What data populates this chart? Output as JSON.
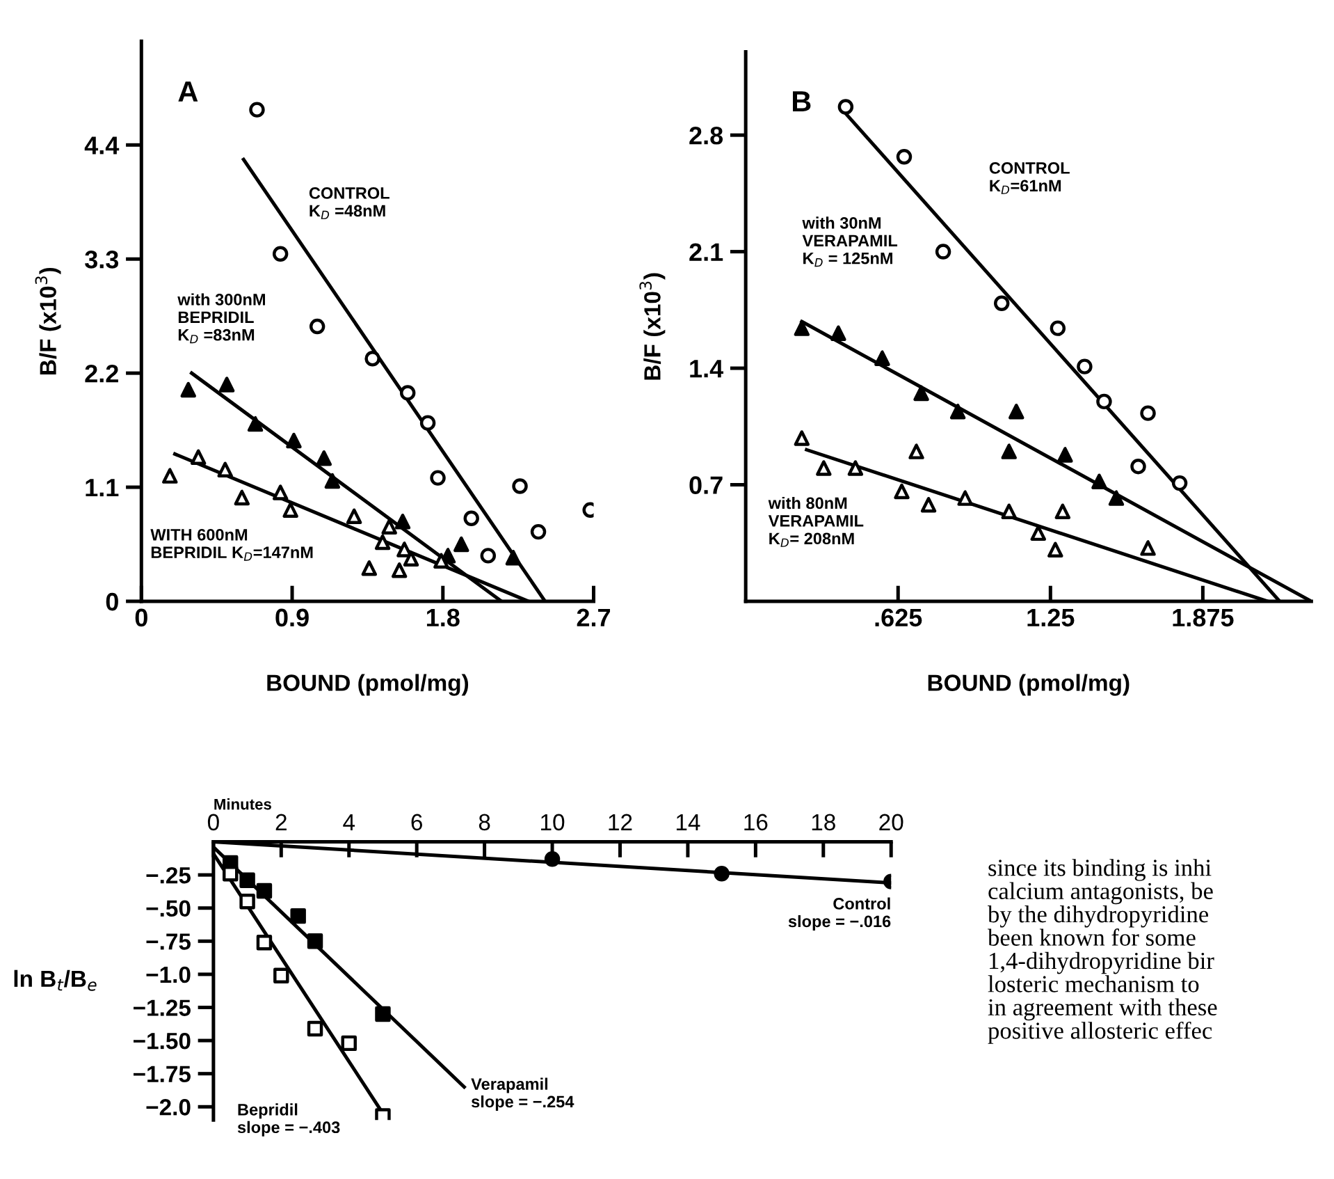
{
  "chart_data": [
    {
      "type": "scatter",
      "title": "A",
      "xlabel": "BOUND (pmol/mg)",
      "ylabel": "B/F (x10$^{3}$)",
      "xlim": [
        0,
        2.7
      ],
      "xticks": [
        0,
        0.9,
        1.8,
        2.7
      ],
      "ylim": [
        0,
        5.4
      ],
      "yticks": [
        0,
        1.1,
        2.2,
        3.3,
        4.4
      ],
      "grid": false,
      "legend": false,
      "series": [
        {
          "marker": "circle",
          "color": "#ffffff",
          "x": [
            0.69,
            0.83,
            1.05,
            1.38,
            1.59,
            1.71,
            1.77,
            1.97,
            2.07,
            2.26,
            2.37,
            2.68
          ],
          "values": [
            4.74,
            3.35,
            2.65,
            2.34,
            2.01,
            1.72,
            1.19,
            0.8,
            0.44,
            1.11,
            0.67,
            0.88
          ]
        },
        {
          "marker": "triangle",
          "color": "#000000",
          "x": [
            0.28,
            0.51,
            0.68,
            0.91,
            1.09,
            1.14,
            1.56,
            1.83,
            1.91,
            2.22
          ],
          "values": [
            2.04,
            2.09,
            1.71,
            1.55,
            1.38,
            1.16,
            0.77,
            0.44,
            0.55,
            0.42
          ]
        },
        {
          "marker": "triangle",
          "color": "#ffffff",
          "x": [
            0.17,
            0.34,
            0.5,
            0.6,
            0.83,
            0.89,
            1.27,
            1.48,
            1.44,
            1.36,
            1.57,
            1.61,
            1.54,
            1.79
          ],
          "values": [
            1.21,
            1.39,
            1.27,
            1.0,
            1.05,
            0.88,
            0.82,
            0.72,
            0.57,
            0.32,
            0.5,
            0.41,
            0.3,
            0.39
          ]
        },
        {
          "type": "line",
          "line_style": "solid",
          "color": "#000000",
          "x": [
            0.61,
            2.41
          ],
          "values": [
            4.26,
            0
          ]
        },
        {
          "type": "line",
          "line_style": "solid",
          "color": "#000000",
          "x": [
            0.3,
            2.15
          ],
          "values": [
            2.2,
            0
          ]
        },
        {
          "type": "line",
          "line_style": "solid",
          "color": "#000000",
          "x": [
            0.2,
            2.31
          ],
          "values": [
            1.42,
            0
          ]
        }
      ],
      "annotations": [
        "CONTROL\nK$_{D}$ =48nM",
        "with 300nM\nBEPRIDIL\nK$_{D}$ =83nM",
        "WITH 600nM\nBEPRIDIL K$_{D}$=147nM"
      ]
    },
    {
      "type": "scatter",
      "title": "B",
      "xlabel": "BOUND (pmol/mg)",
      "ylabel": "B/F (x10$^{3}$)",
      "xlim": [
        0,
        2.32
      ],
      "xticks": [
        {
          "value": 0.625,
          "label": ".625"
        },
        1.25,
        1.875
      ],
      "ylim": [
        0,
        3.3
      ],
      "yticks": [
        0.7,
        1.4,
        2.1,
        2.8
      ],
      "grid": false,
      "legend": false,
      "series": [
        {
          "marker": "circle",
          "color": "#ffffff",
          "x": [
            0.41,
            0.65,
            0.81,
            1.05,
            1.28,
            1.39,
            1.47,
            1.65,
            1.61,
            1.78
          ],
          "values": [
            2.97,
            2.67,
            2.1,
            1.79,
            1.64,
            1.41,
            1.2,
            1.13,
            0.81,
            0.71
          ]
        },
        {
          "marker": "triangle",
          "color": "#000000",
          "x": [
            0.23,
            0.38,
            0.56,
            0.72,
            0.87,
            1.11,
            1.08,
            1.31,
            1.45,
            1.52
          ],
          "values": [
            1.64,
            1.61,
            1.46,
            1.25,
            1.14,
            1.14,
            0.9,
            0.88,
            0.72,
            0.62
          ]
        },
        {
          "marker": "triangle",
          "color": "#ffffff",
          "x": [
            0.23,
            0.32,
            0.45,
            0.64,
            0.7,
            0.75,
            0.9,
            1.08,
            1.2,
            1.27,
            1.3,
            1.65
          ],
          "values": [
            0.98,
            0.8,
            0.8,
            0.66,
            0.9,
            0.58,
            0.62,
            0.54,
            0.41,
            0.31,
            0.54,
            0.32
          ]
        },
        {
          "type": "line",
          "line_style": "solid",
          "color": "#000000",
          "x": [
            0.41,
            2.19
          ],
          "values": [
            2.93,
            0
          ]
        },
        {
          "type": "line",
          "line_style": "solid",
          "color": "#000000",
          "x": [
            0.23,
            2.32
          ],
          "values": [
            1.68,
            0
          ]
        },
        {
          "type": "line",
          "line_style": "solid",
          "color": "#000000",
          "x": [
            0.25,
            2.14
          ],
          "values": [
            0.91,
            0
          ]
        }
      ],
      "annotations": [
        "CONTROL\nK$_{D}$=61nM",
        "with 30nM\nVERAPAMIL\nK$_{D}$ = 125nM",
        "with 80nM\nVERAPAMIL\nK$_{D}$= 208nM"
      ]
    },
    {
      "type": "scatter",
      "xlabel": "Minutes",
      "ylabel": "ln B$_{t}$/B$_{e}$",
      "xlim": [
        0,
        20
      ],
      "xticks": [
        0,
        2,
        4,
        6,
        8,
        10,
        12,
        14,
        16,
        18,
        20
      ],
      "ylim": [
        -2.1,
        0
      ],
      "yticks": [
        {
          "value": -0.25,
          "label": "−.25"
        },
        {
          "value": -0.5,
          "label": "−.50"
        },
        {
          "value": -0.75,
          "label": "−.75"
        },
        {
          "value": -1.0,
          "label": "−1.0"
        },
        {
          "value": -1.25,
          "label": "−1.25"
        },
        {
          "value": -1.5,
          "label": "−1.50"
        },
        {
          "value": -1.75,
          "label": "−1.75"
        },
        {
          "value": -2.0,
          "label": "−2.0"
        }
      ],
      "grid": false,
      "legend": false,
      "series": [
        {
          "marker": "circle",
          "color": "#000000",
          "x": [
            10,
            15,
            20
          ],
          "values": [
            -0.13,
            -0.24,
            -0.3
          ]
        },
        {
          "marker": "square",
          "color": "#000000",
          "x": [
            0.5,
            1.0,
            1.5,
            2.5,
            3.0,
            5.0
          ],
          "values": [
            -0.16,
            -0.29,
            -0.37,
            -0.56,
            -0.75,
            -1.3
          ]
        },
        {
          "marker": "square",
          "color": "#ffffff",
          "x": [
            0.5,
            1.0,
            1.5,
            2.0,
            3.0,
            4.0,
            5.0
          ],
          "values": [
            -0.24,
            -0.45,
            -0.76,
            -1.01,
            -1.41,
            -1.52,
            -2.07
          ]
        },
        {
          "type": "line",
          "line_style": "solid",
          "color": "#000000",
          "x": [
            0,
            20
          ],
          "values": [
            0,
            -0.31
          ]
        },
        {
          "type": "line",
          "line_style": "solid",
          "color": "#000000",
          "x": [
            0,
            7.4
          ],
          "values": [
            -0.04,
            -1.85
          ]
        },
        {
          "type": "line",
          "line_style": "solid",
          "color": "#000000",
          "x": [
            0,
            5.0
          ],
          "values": [
            -0.09,
            -2.05
          ]
        }
      ],
      "annotations": [
        "Control\nslope = −.016",
        "Verapamil\nslope = −.254",
        "Bepridil\nslope = −.403",
        "since its binding is inhi",
        "calcium antagonists, be",
        "by the dihydropyridine",
        "been known for some",
        "1,4-dihydropyridine bir",
        "losteric mechanism to",
        "in agreement with these",
        "positive allosteric effec"
      ]
    }
  ]
}
